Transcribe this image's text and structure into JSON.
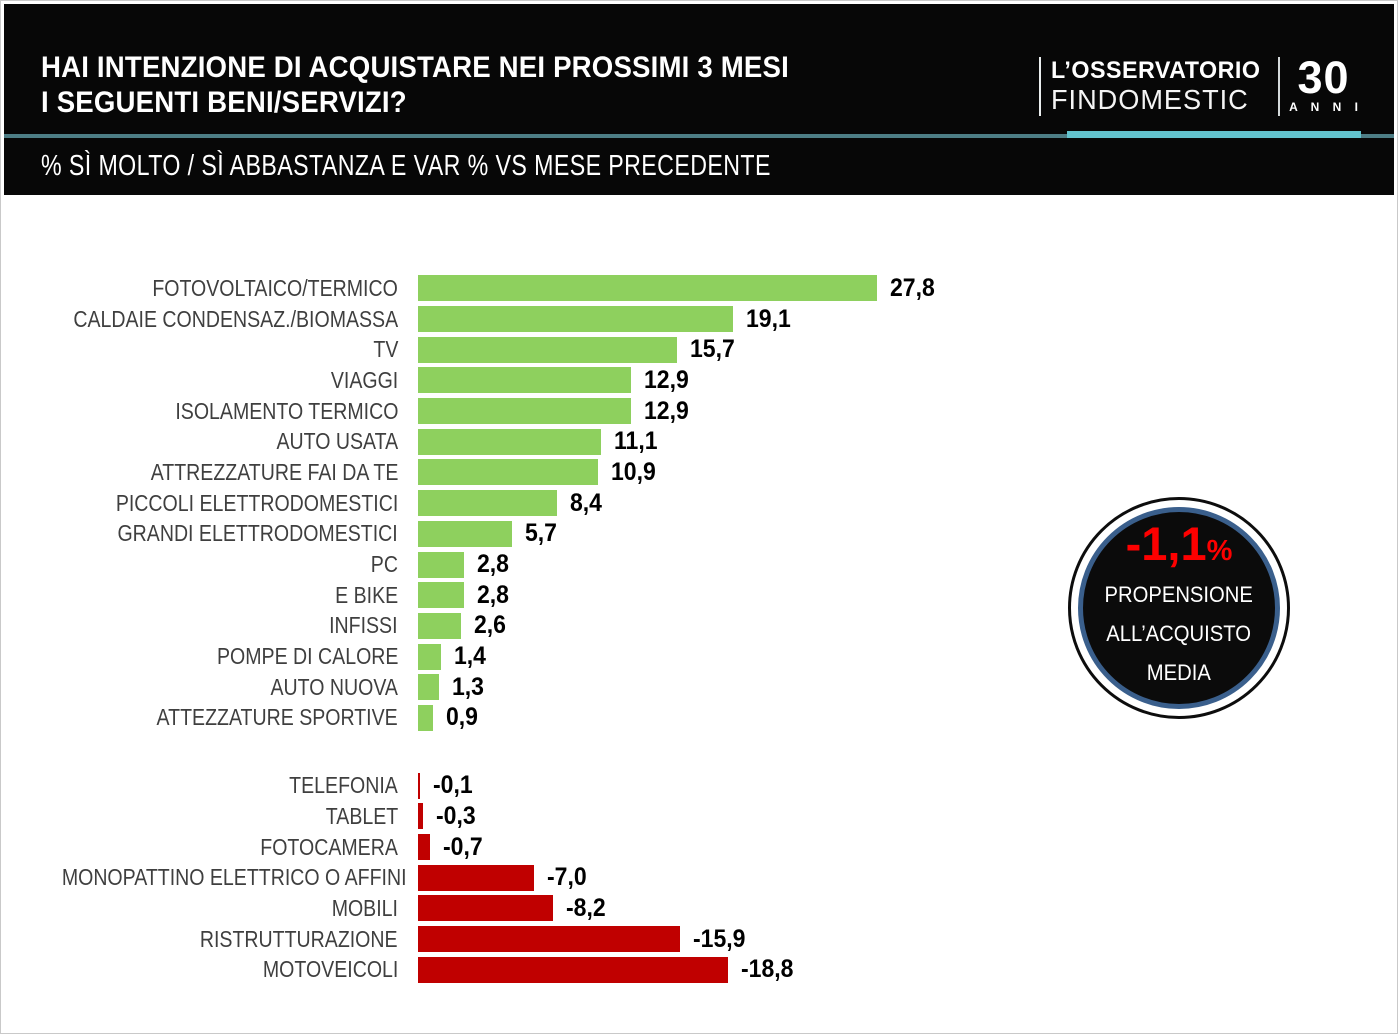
{
  "header": {
    "title_line1": "HAI INTENZIONE DI ACQUISTARE NEI PROSSIMI 3 MESI",
    "title_line2": "I SEGUENTI BENI/SERVIZI?",
    "subtitle": "% SÌ MOLTO / SÌ ABBASTANZA E VAR % VS MESE PRECEDENTE",
    "logo": {
      "line1": "L’OSSERVATORIO",
      "line2": "FINDOMESTIC",
      "years_number": "30",
      "years_label": "A N N I"
    }
  },
  "badge": {
    "value": "-1,1",
    "percent_sign": "%",
    "line1": "PROPENSIONE",
    "line2": "ALL’ACQUISTO",
    "line3": "MEDIA",
    "value_color": "#fe0000"
  },
  "chart_data": {
    "type": "bar",
    "orientation": "horizontal",
    "title": "HAI INTENZIONE DI ACQUISTARE NEI PROSSIMI 3 MESI I SEGUENTI BENI/SERVIZI?",
    "subtitle": "% SÌ MOLTO / SÌ ABBASTANZA E VAR % VS MESE PRECEDENTE",
    "xlim": [
      -19,
      28
    ],
    "grid": false,
    "legend": false,
    "categories": [
      "FOTOVOLTAICO/TERMICO",
      "CALDAIE CONDENSAZ./BIOMASSA",
      "TV",
      "VIAGGI",
      "ISOLAMENTO TERMICO",
      "AUTO USATA",
      "ATTREZZATURE FAI DA TE",
      "PICCOLI ELETTRODOMESTICI",
      "GRANDI ELETTRODOMESTICI",
      "PC",
      "E BIKE",
      "INFISSI",
      "POMPE DI CALORE",
      "AUTO NUOVA",
      "ATTEZZATURE SPORTIVE",
      "TELEFONIA",
      "TABLET",
      "FOTOCAMERA",
      "MONOPATTINO ELETTRICO O AFFINI",
      "MOBILI",
      "RISTRUTTURAZIONE",
      "MOTOVEICOLI"
    ],
    "values": [
      27.8,
      19.1,
      15.7,
      12.9,
      12.9,
      11.1,
      10.9,
      8.4,
      5.7,
      2.8,
      2.8,
      2.6,
      1.4,
      1.3,
      0.9,
      -0.1,
      -0.3,
      -0.7,
      -7.0,
      -8.2,
      -15.9,
      -18.8
    ],
    "value_labels": [
      "27,8",
      "19,1",
      "15,7",
      "12,9",
      "12,9",
      "11,1",
      "10,9",
      "8,4",
      "5,7",
      "2,8",
      "2,8",
      "2,6",
      "1,4",
      "1,3",
      "0,9",
      "-0,1",
      "-0,3",
      "-0,7",
      "-7,0",
      "-8,2",
      "-15,9",
      "-18,8"
    ],
    "positive_color": "#8ed05e",
    "negative_color": "#c00000"
  }
}
